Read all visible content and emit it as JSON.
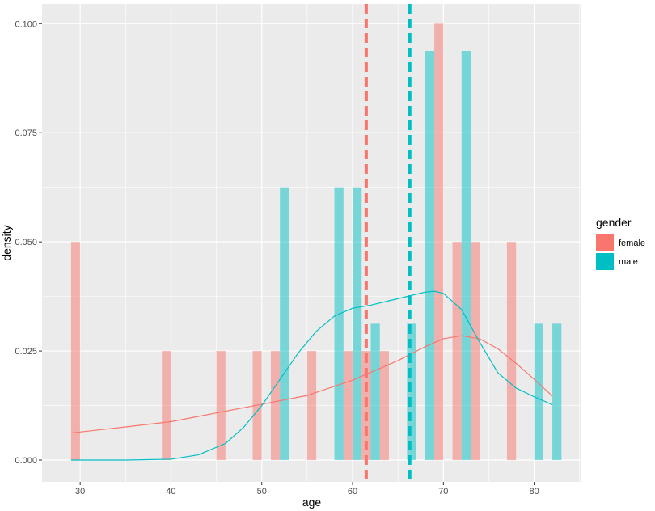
{
  "chart_data": {
    "type": "bar",
    "subtype": "histogram-with-density",
    "xlabel": "age",
    "ylabel": "density",
    "xlim": [
      25.8,
      85.2
    ],
    "ylim": [
      -0.005,
      0.1045
    ],
    "x_ticks": [
      30,
      40,
      50,
      60,
      70,
      80
    ],
    "y_ticks": [
      0.0,
      0.025,
      0.05,
      0.075,
      0.1
    ],
    "y_tick_labels": [
      "0.000",
      "0.025",
      "0.050",
      "0.075",
      "0.100"
    ],
    "grid": true,
    "bin_width": 2,
    "legend": {
      "title": "gender",
      "position": "right",
      "entries": [
        "female",
        "male"
      ]
    },
    "series": [
      {
        "name": "female",
        "color": "#F8766D",
        "histogram": [
          {
            "x": 29.5,
            "density": 0.05
          },
          {
            "x": 39.5,
            "density": 0.025
          },
          {
            "x": 45.5,
            "density": 0.025
          },
          {
            "x": 49.5,
            "density": 0.025
          },
          {
            "x": 51.5,
            "density": 0.025
          },
          {
            "x": 55.5,
            "density": 0.025
          },
          {
            "x": 59.5,
            "density": 0.025
          },
          {
            "x": 61.5,
            "density": 0.025
          },
          {
            "x": 63.5,
            "density": 0.025
          },
          {
            "x": 69.5,
            "density": 0.1
          },
          {
            "x": 71.5,
            "density": 0.05
          },
          {
            "x": 73.5,
            "density": 0.05
          },
          {
            "x": 77.5,
            "density": 0.05
          }
        ],
        "density_curve": {
          "x": [
            29,
            35,
            40,
            45,
            50,
            55,
            60,
            65,
            68,
            70,
            72,
            74,
            76,
            78,
            80,
            82
          ],
          "y": [
            0.0062,
            0.0076,
            0.0088,
            0.0108,
            0.0128,
            0.0148,
            0.0183,
            0.0228,
            0.026,
            0.0278,
            0.0285,
            0.0278,
            0.0255,
            0.0222,
            0.0185,
            0.0147
          ]
        },
        "mean": 61.5
      },
      {
        "name": "male",
        "color": "#00BFC4",
        "histogram": [
          {
            "x": 52.5,
            "density": 0.0625
          },
          {
            "x": 58.5,
            "density": 0.0625
          },
          {
            "x": 60.5,
            "density": 0.0625
          },
          {
            "x": 62.5,
            "density": 0.03125
          },
          {
            "x": 66.5,
            "density": 0.03125
          },
          {
            "x": 68.5,
            "density": 0.09375
          },
          {
            "x": 72.5,
            "density": 0.09375
          },
          {
            "x": 80.5,
            "density": 0.03125
          },
          {
            "x": 82.5,
            "density": 0.03125
          }
        ],
        "density_curve": {
          "x": [
            29,
            35,
            40,
            43,
            46,
            48,
            50,
            52,
            54,
            56,
            58,
            60,
            62,
            64,
            66,
            68,
            69,
            70,
            72,
            74,
            76,
            78,
            80,
            82
          ],
          "y": [
            0.0,
            0.0,
            0.0002,
            0.0012,
            0.0038,
            0.0075,
            0.0125,
            0.0185,
            0.0245,
            0.0295,
            0.033,
            0.0348,
            0.0355,
            0.0365,
            0.0375,
            0.0385,
            0.0387,
            0.0382,
            0.0345,
            0.027,
            0.02,
            0.0165,
            0.0145,
            0.0127
          ]
        },
        "mean": 66.3
      }
    ]
  }
}
